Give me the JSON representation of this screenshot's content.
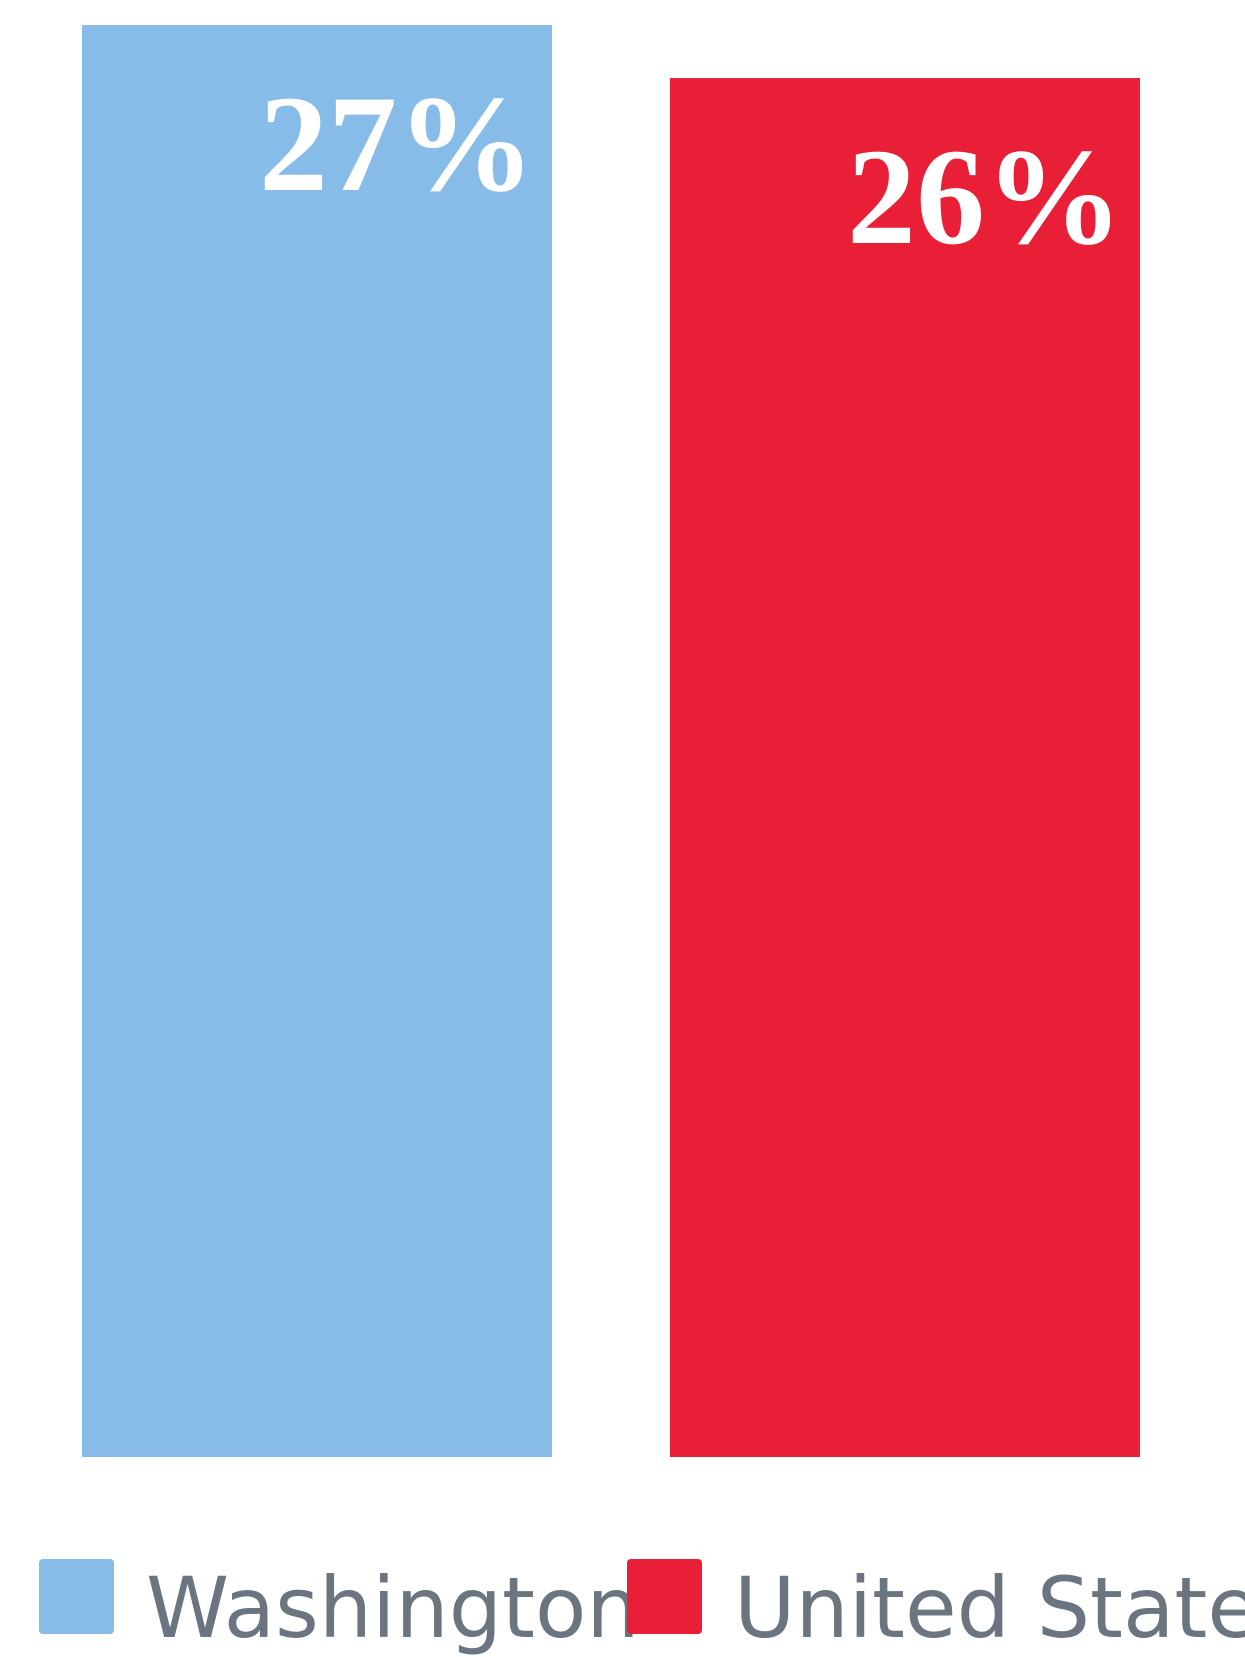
{
  "chart_data": {
    "type": "bar",
    "series": [
      {
        "name": "Washington",
        "color": "#88bce8",
        "values": [
          27
        ],
        "value_labels": [
          "27%"
        ]
      },
      {
        "name": "United States",
        "color": "#e81f37",
        "values": [
          26
        ],
        "value_labels": [
          "26%"
        ]
      }
    ],
    "ylim": [
      0,
      27
    ],
    "legend": "bottom"
  }
}
